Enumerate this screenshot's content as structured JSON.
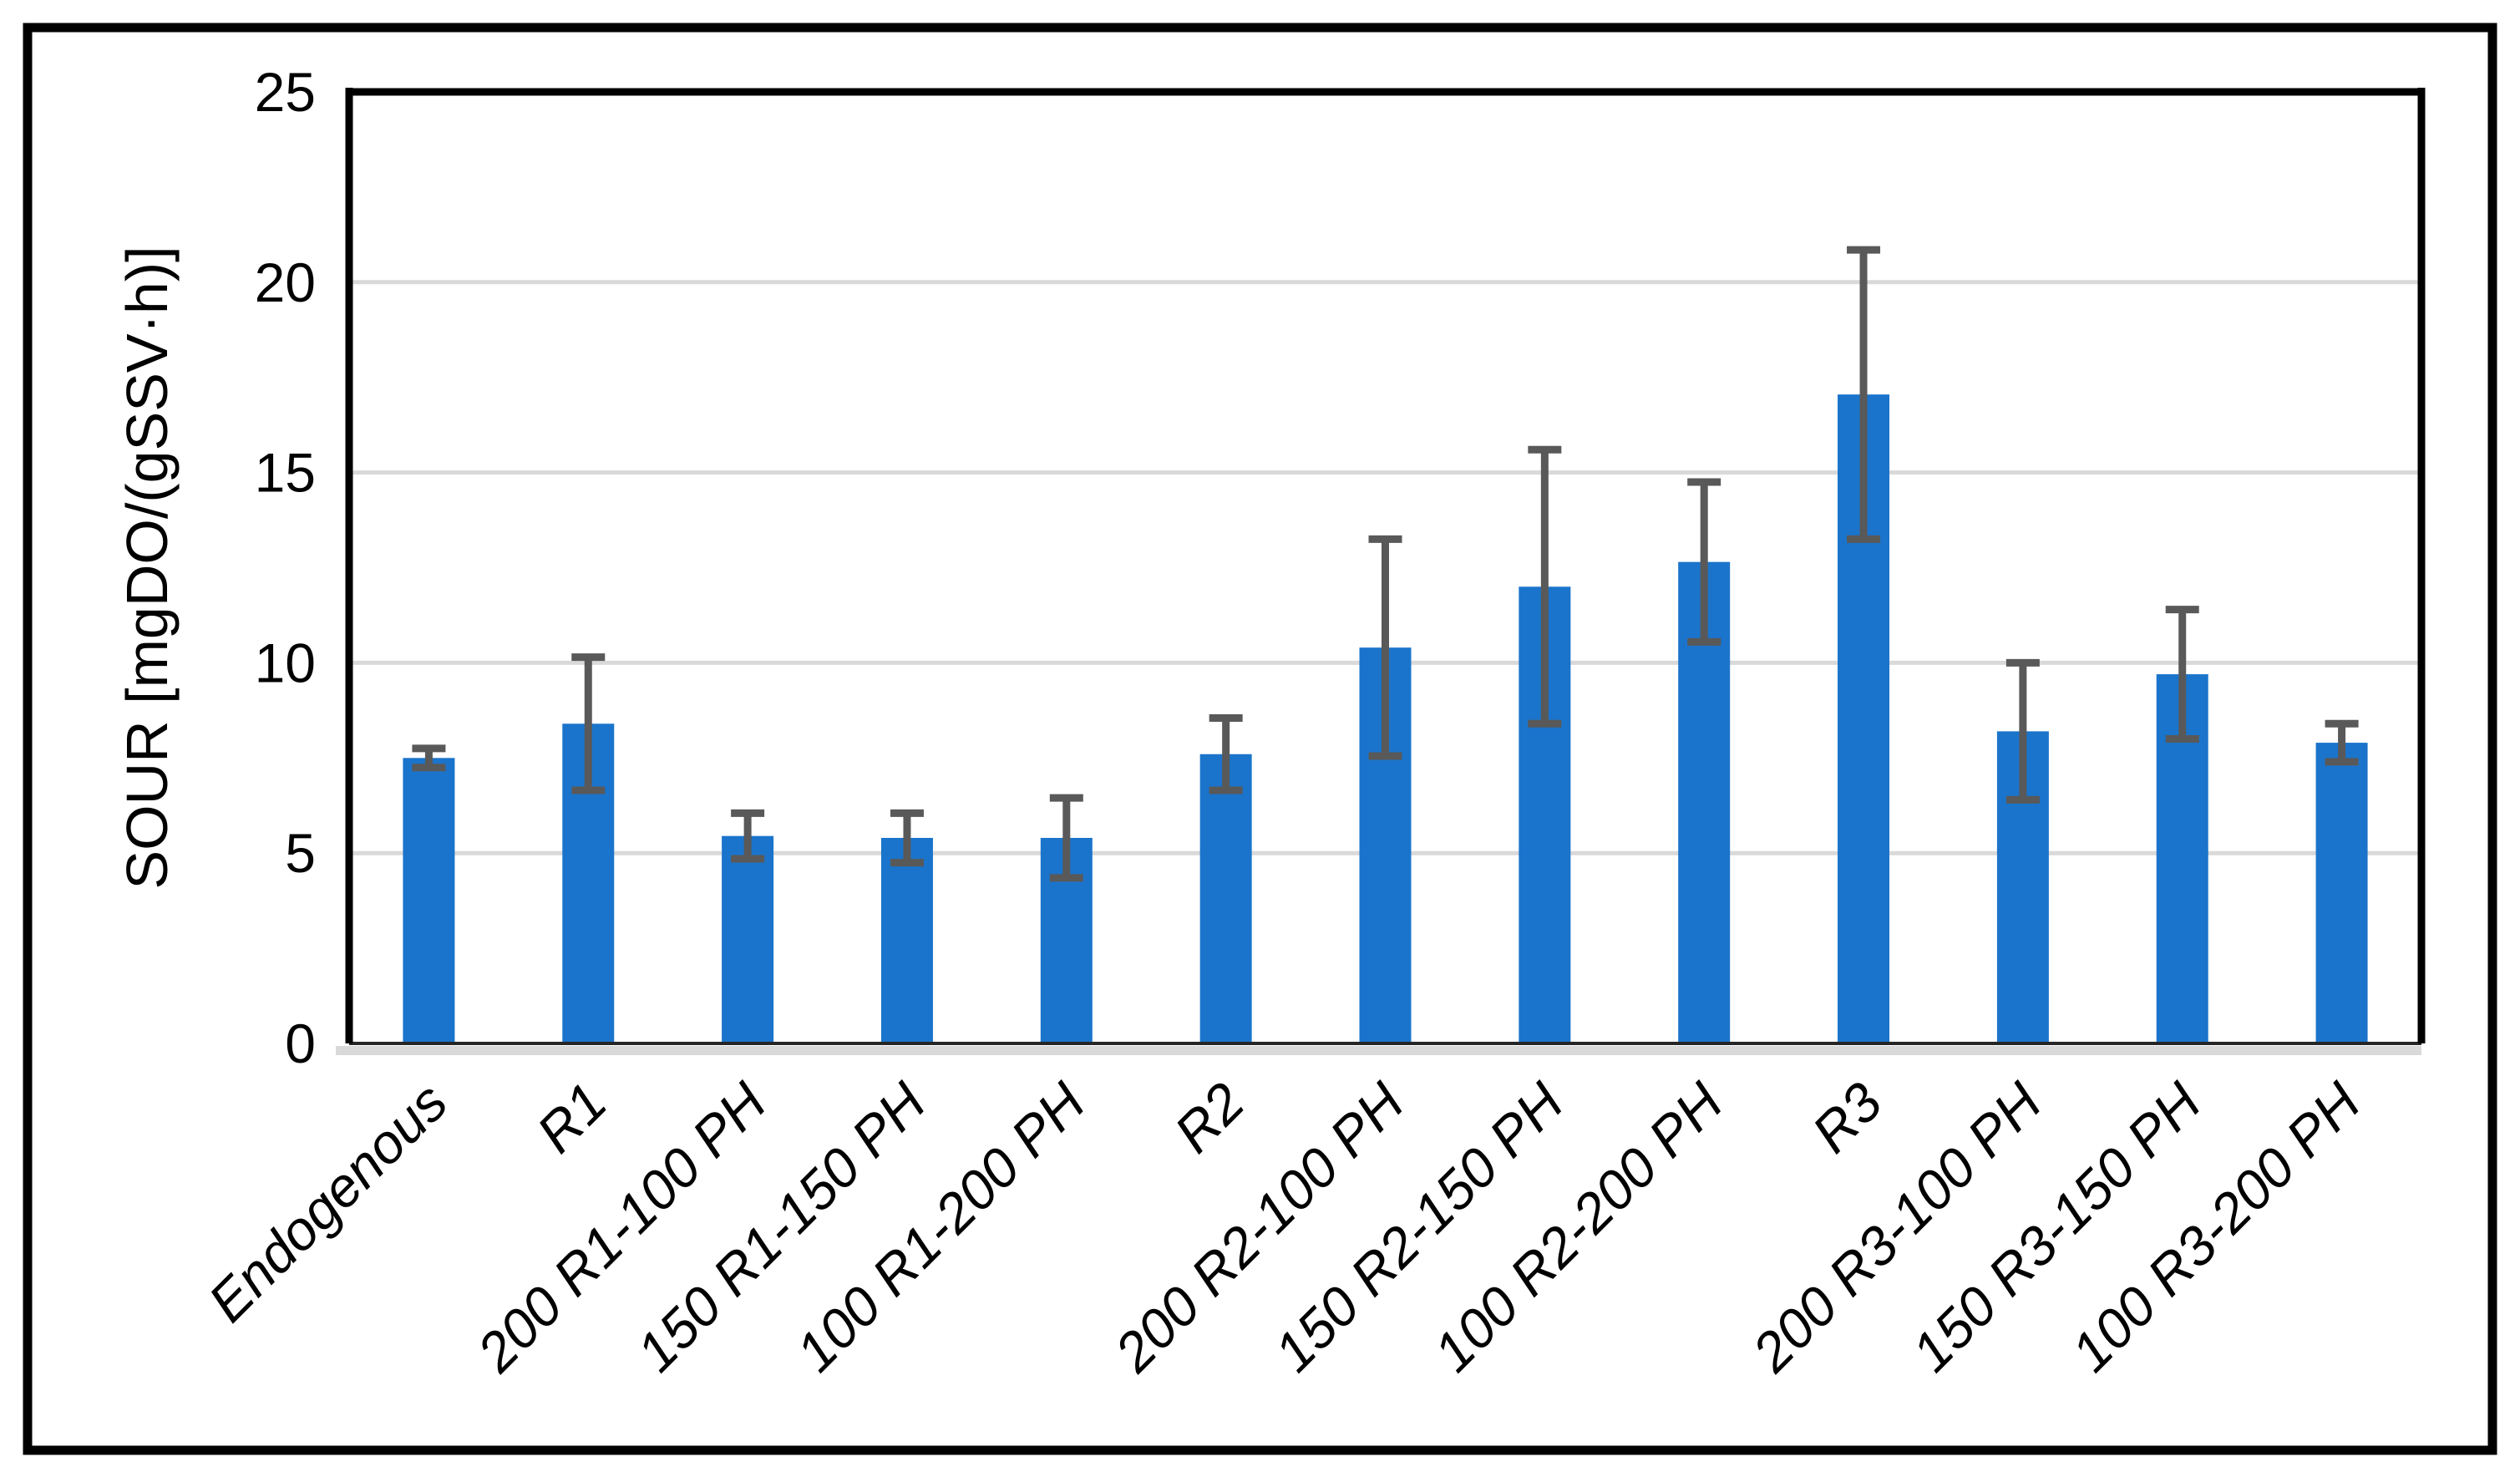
{
  "figure": {
    "background": "#FFFFFF",
    "border_color": "#000000"
  },
  "chart_data": {
    "type": "bar",
    "title": "",
    "xlabel": "",
    "ylabel": "SOUR [mgDO/(gSSV·h)]",
    "ylim": [
      0,
      25
    ],
    "yticks": [
      0,
      5,
      10,
      15,
      20,
      25
    ],
    "grid": "horizontal",
    "legend_position": "none",
    "categories": [
      "Endogenous",
      "R1",
      "200 R1-100 PH",
      "150 R1-150 PH",
      "100 R1-200 PH",
      "R2",
      "200 R2-100 PH",
      "150 R2-150 PH",
      "100 R2-200 PH",
      "R3",
      "200 R3-100 PH",
      "150 R3-150 PH",
      "100 R3-200 PH"
    ],
    "series": [
      {
        "name": "SOUR",
        "values": [
          7.5,
          8.4,
          5.45,
          5.4,
          5.4,
          7.6,
          10.4,
          12.0,
          12.65,
          17.05,
          8.2,
          9.7,
          7.9
        ],
        "error_bars": [
          0.25,
          1.75,
          0.6,
          0.65,
          1.05,
          0.95,
          2.85,
          3.6,
          2.1,
          3.8,
          1.8,
          1.7,
          0.5
        ]
      }
    ],
    "colors": {
      "bar": "#1B74CB",
      "error_bar": "#595959",
      "gridline": "#D9D9D9",
      "axis_line": "#262626",
      "tick_band": "#D9D9D9",
      "frame": "#000000",
      "text": "#000000"
    }
  }
}
